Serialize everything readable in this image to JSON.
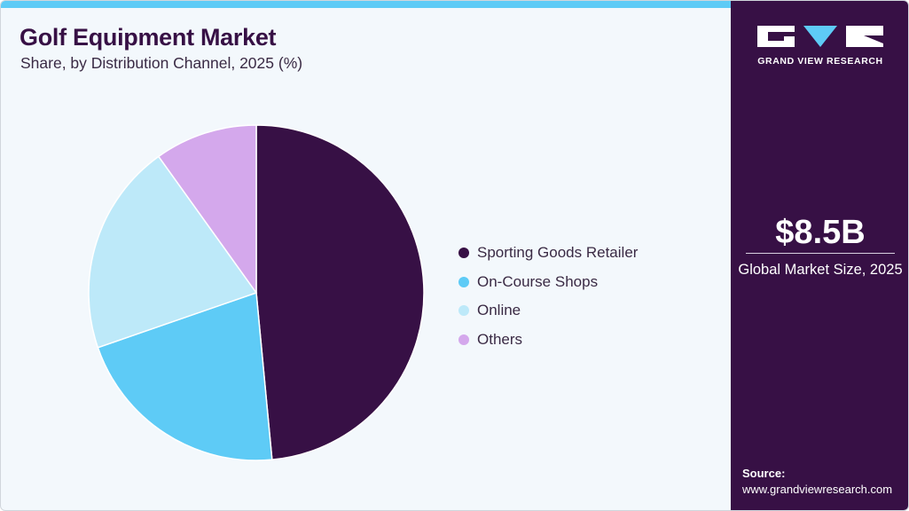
{
  "header": {
    "title": "Golf Equipment Market",
    "subtitle": "Share, by Distribution Channel, 2025 (%)"
  },
  "legend": {
    "items": [
      {
        "label": "Sporting Goods Retailer",
        "color": "#371045"
      },
      {
        "label": "On-Course Shops",
        "color": "#5ecbf6"
      },
      {
        "label": "Online",
        "color": "#bde9f9"
      },
      {
        "label": "Others",
        "color": "#d4a8ec"
      }
    ]
  },
  "sidebar": {
    "brand": "GRAND VIEW RESEARCH",
    "market_value": "$8.5B",
    "market_label": "Global Market Size, 2025",
    "source_label": "Source:",
    "source_url": "www.grandviewresearch.com"
  },
  "colors": {
    "accent": "#5ecbf6",
    "brand_dark": "#371045",
    "background": "#f3f8fc"
  },
  "chart_data": {
    "type": "pie",
    "title": "Golf Equipment Market",
    "subtitle": "Share, by Distribution Channel, 2025 (%)",
    "categories": [
      "Sporting Goods Retailer",
      "On-Course Shops",
      "Online",
      "Others"
    ],
    "values": [
      48.5,
      21.2,
      20.4,
      9.9
    ],
    "colors": [
      "#371045",
      "#5ecbf6",
      "#bde9f9",
      "#d4a8ec"
    ],
    "start_angle_deg": 0,
    "direction": "clockwise",
    "legend_position": "right"
  }
}
